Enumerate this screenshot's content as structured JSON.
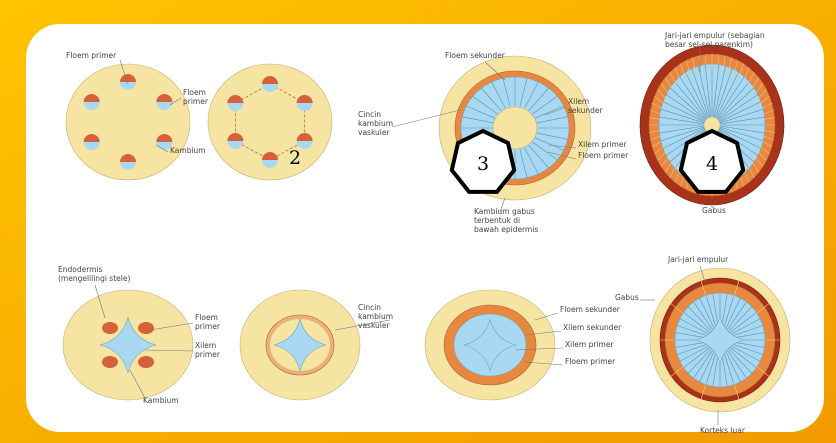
{
  "labels": [
    [
      "Floem primer"
    ],
    [
      "Floem",
      "primer"
    ],
    [
      "Kambium"
    ],
    [
      "Cincin",
      "kambium",
      "vaskuler"
    ],
    [
      "Floem sekunder"
    ],
    [
      "Xilem",
      "sekunder"
    ],
    [
      "Xilem primer"
    ],
    [
      "Floem primer"
    ],
    [
      "Kambium gabus",
      "terbentuk di",
      "bawah epidermis"
    ],
    [
      "Jari-jari empulur (sebagian",
      "besar sel-sel parenkim)"
    ],
    [
      "Gabus"
    ],
    [
      "Endodermis",
      "(mengelilingi stele)"
    ],
    [
      "Floem",
      "primer"
    ],
    [
      "Xilem",
      "primer"
    ],
    [
      "Kambium"
    ],
    [
      "Cincin",
      "kambium",
      "vaskuler"
    ],
    [
      "Floem sekunder"
    ],
    [
      "Xilem sekunder"
    ],
    [
      "Xilem primer"
    ],
    [
      "Floem primer"
    ],
    [
      "Jari-jari empulur"
    ],
    [
      "Gabus"
    ],
    [
      "Korteks luar"
    ]
  ],
  "badges": [
    "2",
    "3",
    "4"
  ]
}
